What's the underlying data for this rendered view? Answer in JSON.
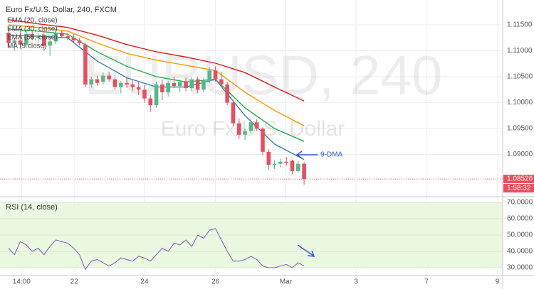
{
  "chart_data": [
    {
      "type": "candlestick",
      "title": "Euro Fx/U.S. Dollar, 240, FXCM",
      "watermark": "EURUSD, 240",
      "watermark_subtitle": "Euro Fx/U.S. Dollar",
      "up_color": "#53b987",
      "down_color": "#eb4d5c",
      "x": [
        0,
        1,
        2,
        3,
        4,
        5,
        6,
        7,
        8,
        9,
        10,
        11,
        12,
        13,
        14,
        15,
        16,
        17,
        18,
        19,
        20,
        21,
        22,
        23,
        24,
        25,
        26,
        27,
        28,
        29,
        30,
        31,
        32,
        33,
        34,
        35,
        36,
        37,
        38,
        39,
        40,
        41,
        42,
        43,
        44,
        45,
        46,
        47,
        48,
        49,
        50
      ],
      "open": [
        1.1135,
        1.1115,
        1.112,
        1.1112,
        1.1132,
        1.1125,
        1.113,
        1.111,
        1.1118,
        1.1135,
        1.1128,
        1.1125,
        1.112,
        1.1112,
        1.1035,
        1.1045,
        1.104,
        1.1052,
        1.1045,
        1.103,
        1.1038,
        1.1035,
        1.103,
        1.1025,
        1.1008,
        1.0995,
        1.1035,
        1.102,
        1.1038,
        1.1032,
        1.104,
        1.1028,
        1.1045,
        1.1025,
        1.1042,
        1.1062,
        1.1045,
        1.1035,
        1.1,
        1.096,
        1.0938,
        1.0945,
        1.0962,
        1.095,
        1.0905,
        1.088,
        1.0882,
        1.0886,
        1.0888,
        1.0868,
        1.0882
      ],
      "high": [
        1.1145,
        1.1125,
        1.114,
        1.1138,
        1.114,
        1.1135,
        1.1138,
        1.1125,
        1.114,
        1.114,
        1.1135,
        1.1132,
        1.1125,
        1.1115,
        1.105,
        1.1052,
        1.1058,
        1.106,
        1.105,
        1.1042,
        1.1048,
        1.1045,
        1.104,
        1.1035,
        1.1015,
        1.104,
        1.1045,
        1.1042,
        1.105,
        1.1045,
        1.1048,
        1.105,
        1.105,
        1.1048,
        1.1068,
        1.107,
        1.106,
        1.104,
        1.1005,
        1.097,
        1.095,
        1.097,
        1.0968,
        1.0952,
        1.091,
        1.089,
        1.0892,
        1.0895,
        1.089,
        1.0888,
        1.0885
      ],
      "low": [
        1.1105,
        1.11,
        1.1108,
        1.1105,
        1.112,
        1.1115,
        1.11,
        1.109,
        1.1112,
        1.1125,
        1.112,
        1.1115,
        1.111,
        1.103,
        1.1028,
        1.1032,
        1.1035,
        1.104,
        1.1025,
        1.1018,
        1.1028,
        1.1022,
        1.1015,
        1.1,
        1.0982,
        1.099,
        1.1005,
        1.1012,
        1.1028,
        1.102,
        1.1022,
        1.1022,
        1.1018,
        1.102,
        1.1038,
        1.104,
        1.103,
        1.0995,
        1.0955,
        1.093,
        1.0928,
        1.094,
        1.0945,
        1.0898,
        1.087,
        1.0872,
        1.0875,
        1.0878,
        1.0862,
        1.0865,
        1.0842
      ],
      "close": [
        1.1115,
        1.112,
        1.1112,
        1.1132,
        1.1125,
        1.113,
        1.111,
        1.1118,
        1.1135,
        1.1128,
        1.1125,
        1.112,
        1.1115,
        1.1035,
        1.1045,
        1.1038,
        1.1052,
        1.1045,
        1.103,
        1.1038,
        1.1035,
        1.103,
        1.1025,
        1.1008,
        1.0995,
        1.1035,
        1.102,
        1.1038,
        1.1032,
        1.104,
        1.1028,
        1.1045,
        1.1025,
        1.1042,
        1.1062,
        1.1045,
        1.1035,
        1.1,
        1.096,
        1.0938,
        1.0945,
        1.0962,
        1.095,
        1.0905,
        1.088,
        1.0882,
        1.0886,
        1.0884,
        1.0868,
        1.0882,
        1.08526
      ],
      "indicators": [
        {
          "name": "EMA (20, close)",
          "color": "#21b24b",
          "x": [
            0,
            5,
            10,
            15,
            20,
            25,
            30,
            35,
            40,
            45,
            50
          ],
          "values": [
            1.1142,
            1.1138,
            1.1132,
            1.1098,
            1.107,
            1.105,
            1.104,
            1.1045,
            1.099,
            1.095,
            1.0925
          ]
        },
        {
          "name": "EMA (30, close)",
          "color": "#ff9800",
          "x": [
            0,
            5,
            10,
            15,
            20,
            25,
            30,
            35,
            40,
            45,
            50
          ],
          "values": [
            1.115,
            1.1145,
            1.1138,
            1.1115,
            1.1095,
            1.1082,
            1.1072,
            1.1062,
            1.102,
            1.0985,
            1.0955
          ]
        },
        {
          "name": "EMA (55, close)",
          "color": "#e3161c",
          "x": [
            0,
            5,
            10,
            15,
            20,
            25,
            30,
            35,
            40,
            45,
            50
          ],
          "values": [
            1.116,
            1.1152,
            1.1145,
            1.113,
            1.1112,
            1.1098,
            1.1088,
            1.1076,
            1.1058,
            1.103,
            1.1003
          ]
        },
        {
          "name": "MA (9 close)",
          "color": "#3a7fb8",
          "x": [
            0,
            5,
            10,
            15,
            20,
            25,
            30,
            35,
            40,
            45,
            50
          ],
          "values": [
            1.113,
            1.1128,
            1.1125,
            1.108,
            1.1048,
            1.103,
            1.103,
            1.1045,
            1.0975,
            1.092,
            1.089
          ]
        }
      ],
      "annotation": "9-DMA",
      "price_marker": {
        "value": 1.08526,
        "label": "1.08526"
      },
      "countdown": "1:58:32",
      "xlim": [
        -1.45,
        83.6
      ],
      "xticks": [
        {
          "value": 2.2,
          "label": "14:00"
        },
        {
          "value": 11.1,
          "label": "22"
        },
        {
          "value": 23,
          "label": "24"
        },
        {
          "value": 35,
          "label": "26"
        },
        {
          "value": 46.9,
          "label": "Mar"
        },
        {
          "value": 58.8,
          "label": "3"
        },
        {
          "value": 70.7,
          "label": "7"
        },
        {
          "value": 82.7,
          "label": "9"
        }
      ],
      "ylim": [
        1.08212,
        1.1198
      ],
      "yticks": [
        {
          "value": 1.115,
          "label": "1.11500"
        },
        {
          "value": 1.11,
          "label": "1.11000"
        },
        {
          "value": 1.105,
          "label": "1.10500"
        },
        {
          "value": 1.1,
          "label": "1.10000"
        },
        {
          "value": 1.095,
          "label": "1.09500"
        },
        {
          "value": 1.09,
          "label": "1.09000"
        }
      ],
      "grid": true
    },
    {
      "type": "line",
      "title": "RSI (14, close)",
      "color": "#7e57c2",
      "x": [
        0,
        1,
        2,
        3,
        4,
        5,
        6,
        7,
        8,
        9,
        10,
        11,
        12,
        13,
        14,
        15,
        16,
        17,
        18,
        19,
        20,
        21,
        22,
        23,
        24,
        25,
        26,
        27,
        28,
        29,
        30,
        31,
        32,
        33,
        34,
        35,
        36,
        37,
        38,
        39,
        40,
        41,
        42,
        43,
        44,
        45,
        46,
        47,
        48,
        49,
        50
      ],
      "values": [
        42,
        38,
        46,
        44,
        40,
        42,
        38,
        43,
        47,
        46,
        45,
        42,
        38,
        29,
        34,
        35,
        33,
        31,
        33,
        36,
        35,
        34,
        37,
        36,
        34,
        38,
        42,
        40,
        45,
        44,
        47,
        43,
        50,
        48,
        53,
        54,
        47,
        40,
        34,
        34,
        35,
        37,
        35,
        31,
        30,
        30,
        31,
        32,
        30,
        33,
        31
      ],
      "band": [
        30,
        70
      ],
      "xlim": [
        -1.45,
        83.6
      ],
      "ylim": [
        25.2,
        72.2
      ],
      "yticks": [
        {
          "value": 70,
          "label": "70.0000"
        },
        {
          "value": 60,
          "label": "60.0000"
        },
        {
          "value": 50,
          "label": "50.0000"
        },
        {
          "value": 40,
          "label": "40.0000"
        },
        {
          "value": 30,
          "label": "30.0000"
        }
      ],
      "grid": true
    }
  ]
}
